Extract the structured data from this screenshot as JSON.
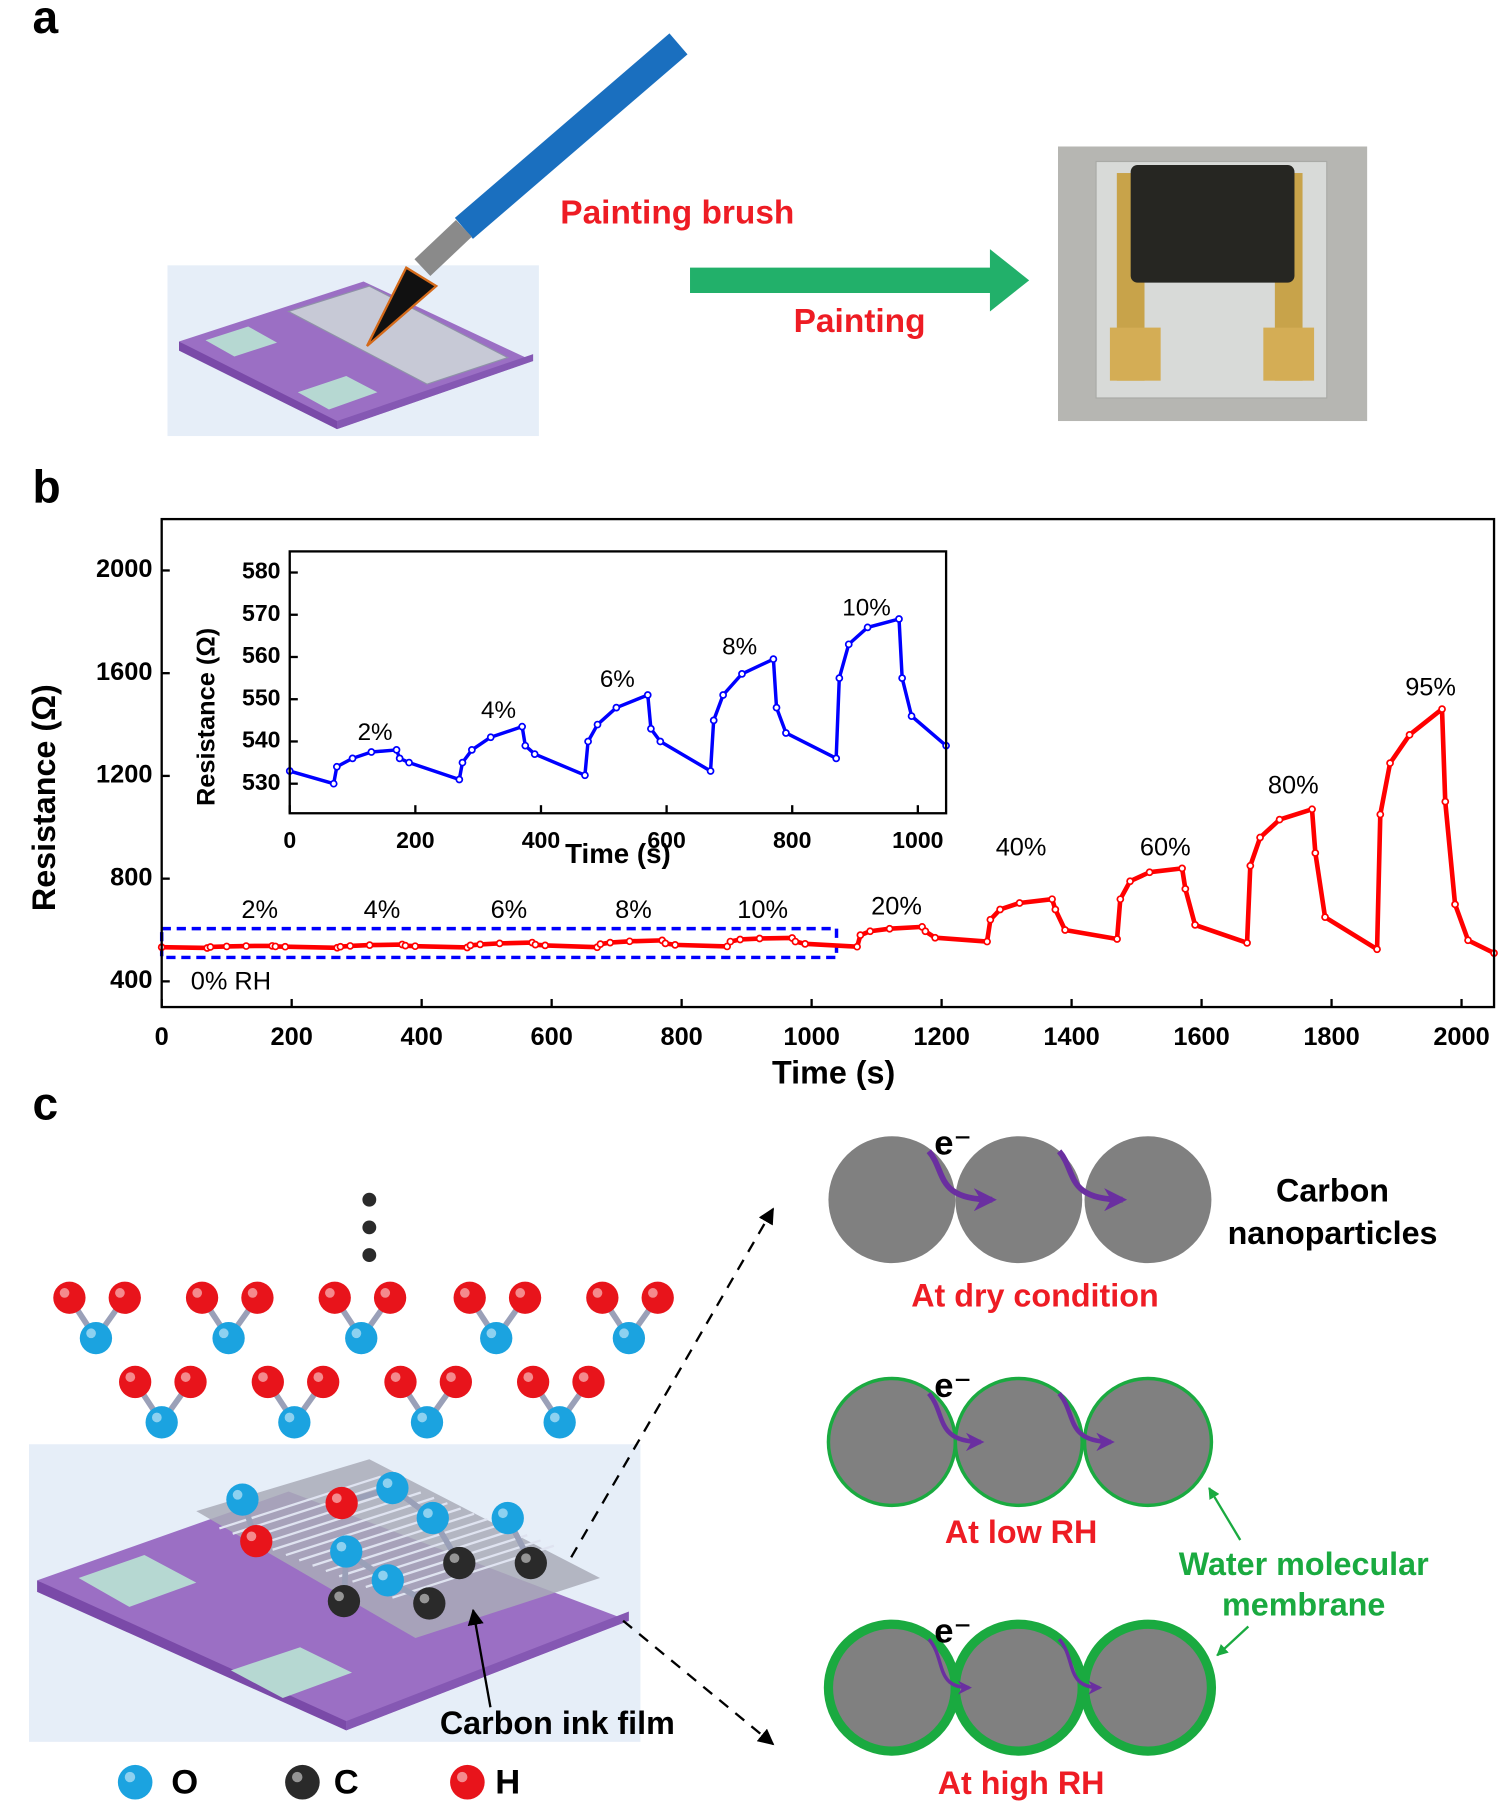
{
  "panel_labels": [
    "a",
    "b",
    "c"
  ],
  "panel_a": {
    "brush_label": "Painting brush",
    "arrow_label": "Painting"
  },
  "chart_data": [
    {
      "type": "line",
      "xlabel": "Time (s)",
      "ylabel": "Resistance (Ω)",
      "xlim": [
        0,
        2050
      ],
      "ylim": [
        300,
        2200
      ],
      "xticks": [
        0,
        200,
        400,
        600,
        800,
        1000,
        1200,
        1400,
        1600,
        1800,
        2000
      ],
      "yticks": [
        400,
        800,
        1200,
        1600,
        2000
      ],
      "annotations": [
        "0% RH",
        "2%",
        "4%",
        "6%",
        "8%",
        "10%",
        "20%",
        "40%",
        "60%",
        "80%",
        "95%"
      ],
      "series": [
        {
          "color": "#ff0000",
          "x": [
            0,
            70,
            75,
            100,
            130,
            170,
            175,
            190,
            270,
            275,
            290,
            320,
            370,
            375,
            390,
            470,
            475,
            490,
            520,
            570,
            575,
            590,
            670,
            675,
            690,
            720,
            770,
            775,
            790,
            870,
            875,
            890,
            920,
            970,
            975,
            990,
            1070,
            1075,
            1090,
            1120,
            1170,
            1175,
            1190,
            1270,
            1275,
            1290,
            1320,
            1370,
            1375,
            1390,
            1470,
            1475,
            1490,
            1520,
            1570,
            1575,
            1590,
            1670,
            1675,
            1690,
            1720,
            1770,
            1775,
            1790,
            1870,
            1875,
            1890,
            1920,
            1970,
            1975,
            1990,
            2010,
            2050
          ],
          "values": [
            533,
            530,
            534,
            536,
            537.5,
            538,
            536,
            535,
            531,
            535,
            538,
            541,
            543.5,
            539,
            537,
            532,
            540,
            544,
            548,
            551,
            543,
            540,
            533,
            545,
            551,
            556,
            559.5,
            548,
            542,
            536,
            555,
            563,
            567,
            569,
            555,
            546,
            535,
            580,
            595,
            605,
            612,
            595,
            570,
            555,
            640,
            680,
            705,
            720,
            680,
            600,
            565,
            720,
            790,
            825,
            840,
            760,
            620,
            550,
            850,
            960,
            1030,
            1070,
            900,
            650,
            525,
            1050,
            1250,
            1360,
            1460,
            1100,
            700,
            560,
            510
          ]
        }
      ]
    },
    {
      "type": "line",
      "xlabel": "Time (s)",
      "ylabel": "Resistance (Ω)",
      "xlim": [
        0,
        1045
      ],
      "ylim": [
        523,
        585
      ],
      "xticks": [
        0,
        200,
        400,
        600,
        800,
        1000
      ],
      "yticks": [
        530,
        540,
        550,
        560,
        570,
        580
      ],
      "annotations": [
        "2%",
        "4%",
        "6%",
        "8%",
        "10%"
      ],
      "series": [
        {
          "color": "#0000ff",
          "x": [
            0,
            70,
            75,
            100,
            130,
            170,
            175,
            190,
            270,
            275,
            290,
            320,
            370,
            375,
            390,
            470,
            475,
            490,
            520,
            570,
            575,
            590,
            670,
            675,
            690,
            720,
            770,
            775,
            790,
            870,
            875,
            890,
            920,
            970,
            975,
            990,
            1045
          ],
          "values": [
            533,
            530,
            534,
            536,
            537.5,
            538,
            536,
            535,
            531,
            535,
            538,
            541,
            543.5,
            539,
            537,
            532,
            540,
            544,
            548,
            551,
            543,
            540,
            533,
            545,
            551,
            556,
            559.5,
            548,
            542,
            536,
            555,
            563,
            567,
            569,
            555,
            546,
            539
          ]
        }
      ]
    }
  ],
  "panel_c": {
    "electron": "e⁻",
    "particles_label": [
      "Carbon",
      "nanoparticles"
    ],
    "conditions": [
      "At dry condition",
      "At low RH",
      "At high  RH"
    ],
    "membrane_label": [
      "Water molecular",
      "membrane"
    ],
    "film_label": "Carbon ink film",
    "legend": [
      "O",
      "C",
      "H"
    ]
  }
}
